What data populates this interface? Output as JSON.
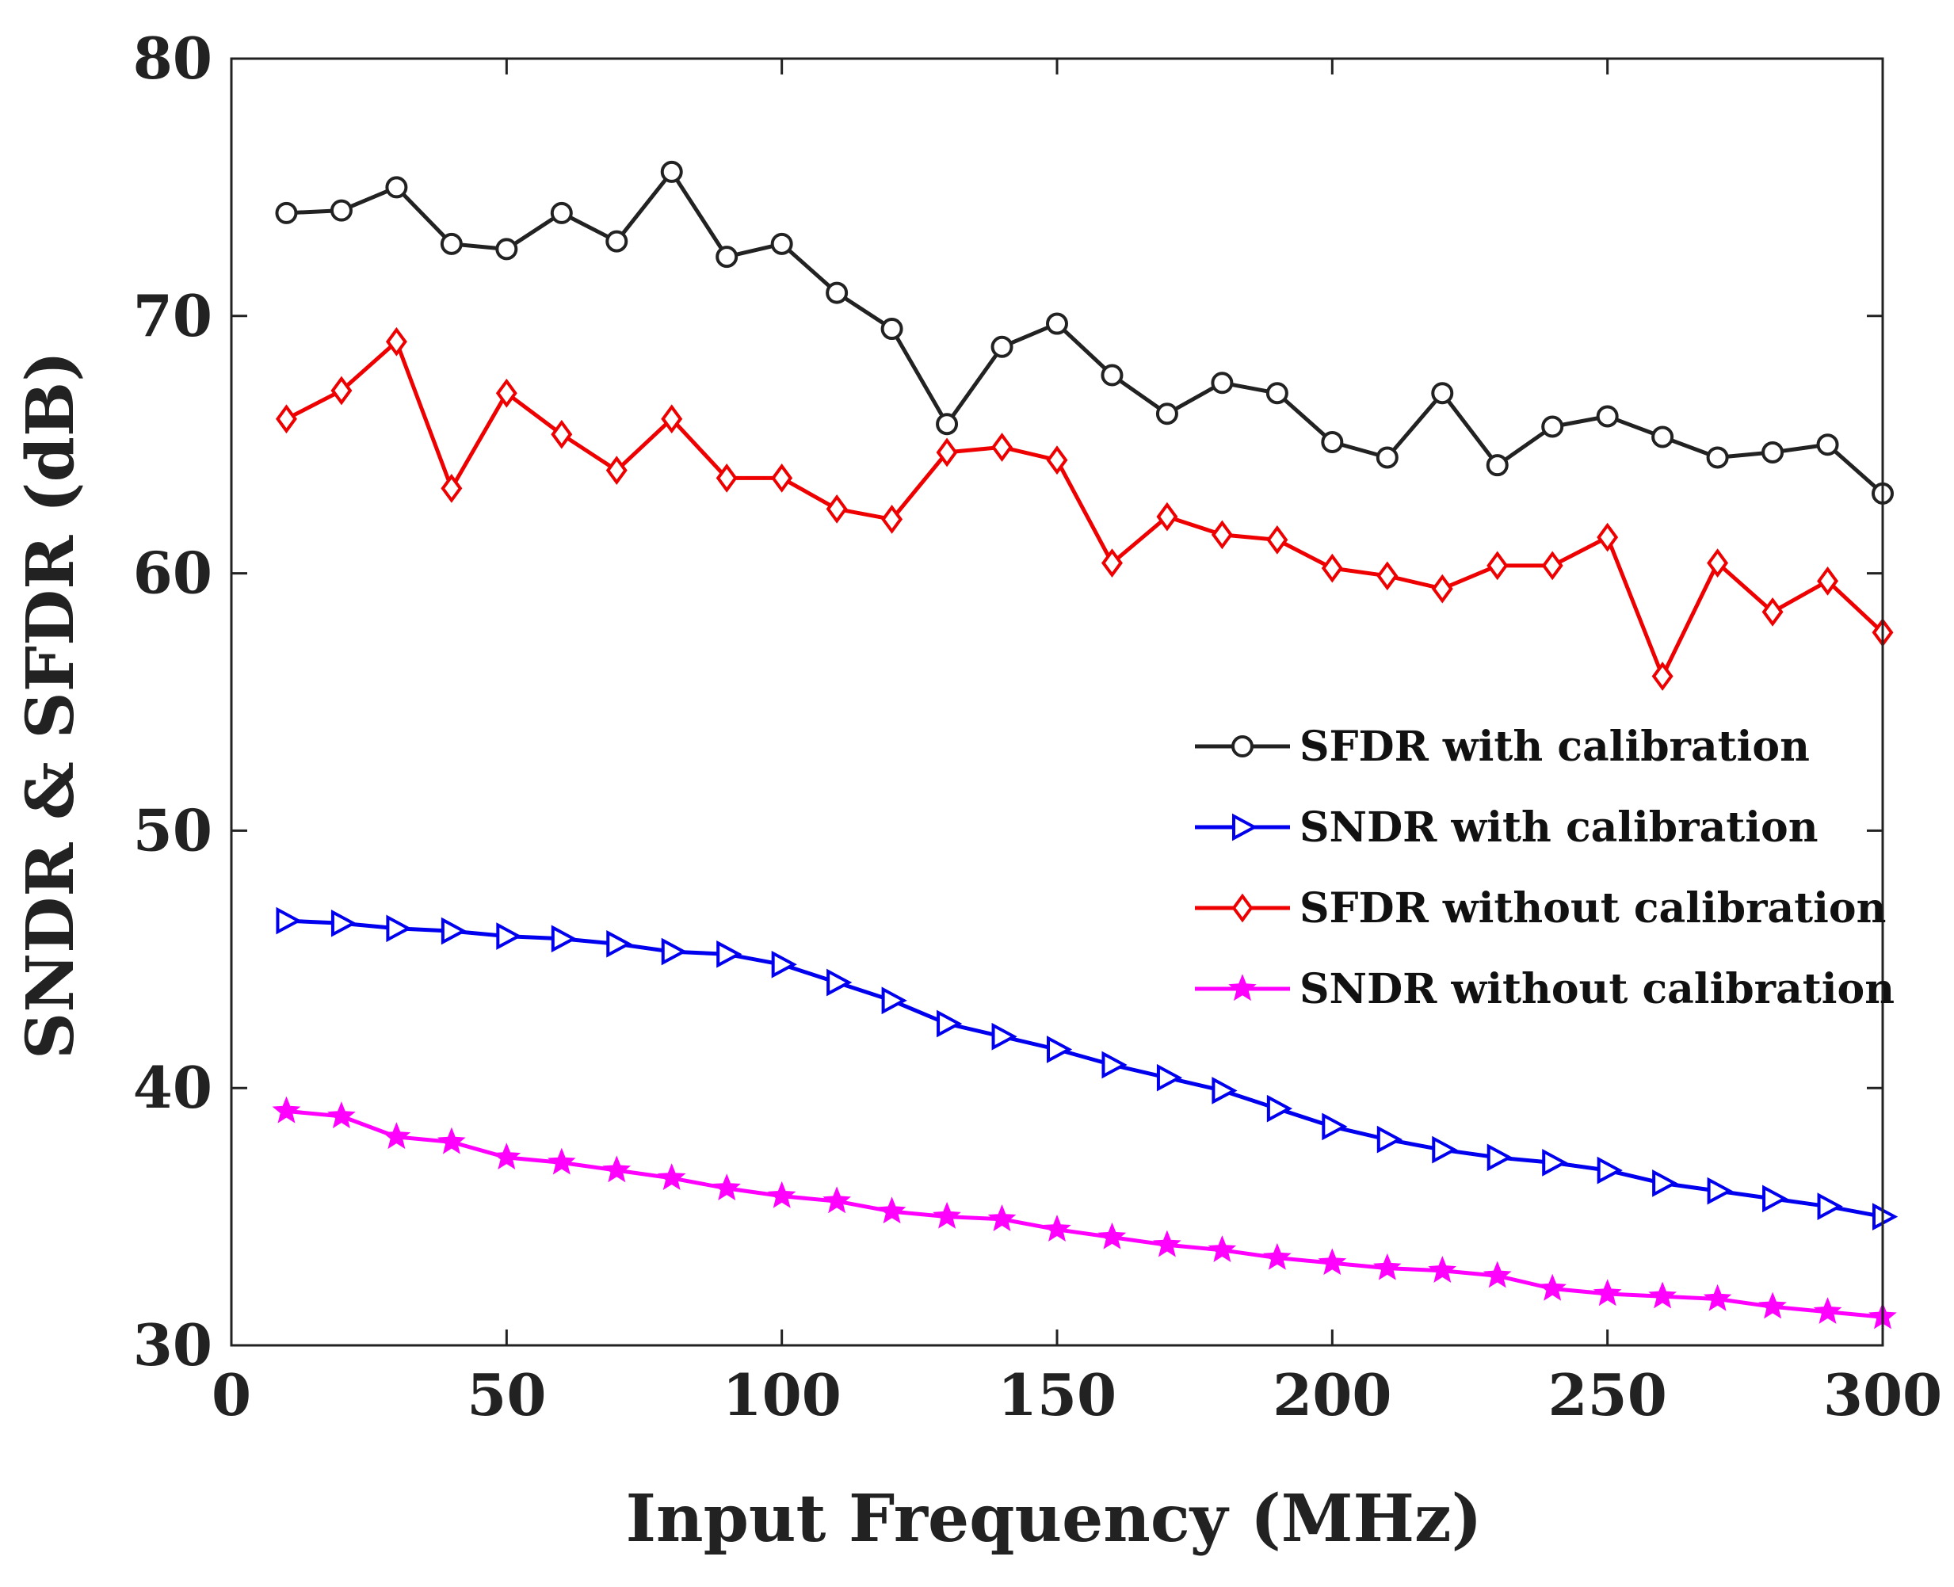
{
  "chart_data": {
    "type": "line",
    "title": "",
    "xlabel": "Input Frequency (MHz)",
    "ylabel": "SNDR & SFDR (dB)",
    "xlim": [
      0,
      300
    ],
    "ylim": [
      30,
      80
    ],
    "xticks": [
      0,
      50,
      100,
      150,
      200,
      250,
      300
    ],
    "yticks": [
      30,
      40,
      50,
      60,
      70,
      80
    ],
    "grid": false,
    "legend_position": "right-center",
    "x": [
      10,
      20,
      30,
      40,
      50,
      60,
      70,
      80,
      90,
      100,
      110,
      120,
      130,
      140,
      150,
      160,
      170,
      180,
      190,
      200,
      210,
      220,
      230,
      240,
      250,
      260,
      270,
      280,
      290,
      300
    ],
    "series": [
      {
        "name": "SFDR with calibration",
        "color": "#222222",
        "marker": "circle",
        "values": [
          74.0,
          74.1,
          75.0,
          72.8,
          72.6,
          74.0,
          72.9,
          75.6,
          72.3,
          72.8,
          70.9,
          69.5,
          65.8,
          68.8,
          69.7,
          67.7,
          66.2,
          67.4,
          67.0,
          65.1,
          64.5,
          67.0,
          64.2,
          65.7,
          66.1,
          65.3,
          64.5,
          64.7,
          65.0,
          63.1
        ]
      },
      {
        "name": "SNDR with calibration",
        "color": "#0000ee",
        "marker": "triangle-right",
        "values": [
          46.5,
          46.4,
          46.2,
          46.1,
          45.9,
          45.8,
          45.6,
          45.3,
          45.2,
          44.8,
          44.1,
          43.4,
          42.5,
          42.0,
          41.5,
          40.9,
          40.4,
          39.9,
          39.2,
          38.5,
          38.0,
          37.6,
          37.3,
          37.1,
          36.8,
          36.3,
          36.0,
          35.7,
          35.4,
          35.0
        ]
      },
      {
        "name": "SFDR without calibration",
        "color": "#ee0000",
        "marker": "diamond",
        "values": [
          66.0,
          67.1,
          69.0,
          63.3,
          67.0,
          65.4,
          64.0,
          66.0,
          63.7,
          63.7,
          62.5,
          62.1,
          64.7,
          64.9,
          64.4,
          60.4,
          62.2,
          61.5,
          61.3,
          60.2,
          59.9,
          59.4,
          60.3,
          60.3,
          61.4,
          56.0,
          60.4,
          58.5,
          59.7,
          57.7
        ]
      },
      {
        "name": "SNDR without calibration",
        "color": "#ff00ff",
        "marker": "star",
        "values": [
          39.1,
          38.9,
          38.1,
          37.9,
          37.3,
          37.1,
          36.8,
          36.5,
          36.1,
          35.8,
          35.6,
          35.2,
          35.0,
          34.9,
          34.5,
          34.2,
          33.9,
          33.7,
          33.4,
          33.2,
          33.0,
          32.9,
          32.7,
          32.2,
          32.0,
          31.9,
          31.8,
          31.5,
          31.3,
          31.1
        ]
      }
    ]
  }
}
